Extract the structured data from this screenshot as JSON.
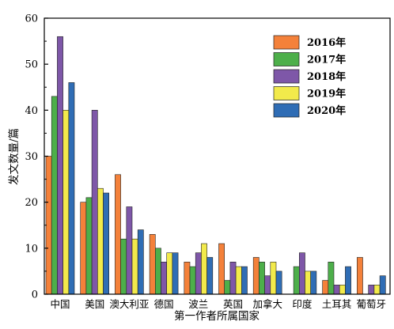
{
  "chart_data": {
    "type": "bar",
    "xlabel": "第一作者所属国家",
    "ylabel": "发文数量/篇",
    "ylim": [
      0,
      60
    ],
    "yticks": [
      0,
      10,
      20,
      30,
      40,
      50,
      60
    ],
    "grid": false,
    "legend_position": "top-right",
    "categories": [
      "中国",
      "美国",
      "澳大利亚",
      "德国",
      "波兰",
      "英国",
      "加拿大",
      "印度",
      "土耳其",
      "葡萄牙"
    ],
    "series": [
      {
        "name": "2016年",
        "color": "#F4813A",
        "values": [
          30,
          20,
          26,
          13,
          7,
          11,
          8,
          0,
          3,
          8
        ]
      },
      {
        "name": "2017年",
        "color": "#4DAF4A",
        "values": [
          43,
          21,
          12,
          10,
          6,
          3,
          7,
          6,
          7,
          0
        ]
      },
      {
        "name": "2018年",
        "color": "#7E57A8",
        "values": [
          56,
          40,
          19,
          7,
          9,
          7,
          4,
          9,
          2,
          2
        ]
      },
      {
        "name": "2019年",
        "color": "#F2EA4B",
        "values": [
          40,
          23,
          12,
          9,
          11,
          6,
          7,
          5,
          2,
          2
        ]
      },
      {
        "name": "2020年",
        "color": "#2F6DB5",
        "values": [
          46,
          22,
          14,
          9,
          8,
          6,
          5,
          5,
          6,
          4
        ]
      }
    ]
  }
}
